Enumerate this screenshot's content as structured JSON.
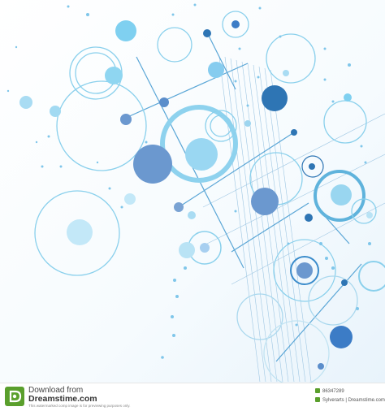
{
  "footer": {
    "download_from": "Download from",
    "site": "Dreamstime.com",
    "disclaimer": "This watermarked comp image is for previewing purposes only.",
    "image_id": "86347289",
    "credit": "Sylverarts | Dreamstime.com"
  },
  "colors": {
    "accent_light": "#79c7e8",
    "accent_mid": "#5aa6d6",
    "accent_dark": "#2e75b4",
    "blob_blue": "#6b98cf",
    "logo_green": "#5a9f2c"
  }
}
